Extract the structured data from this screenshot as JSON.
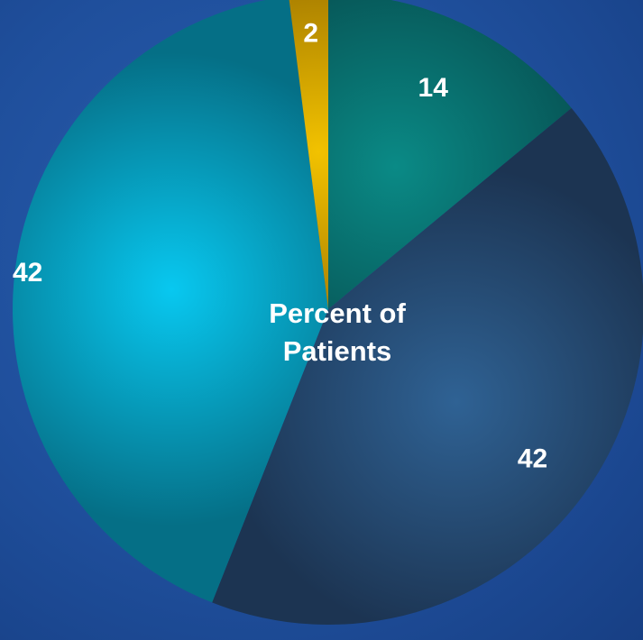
{
  "chart_data": {
    "type": "pie",
    "title": "Percent of Patients",
    "slices": [
      {
        "value": 14,
        "label": "14",
        "color": "#0a8a86",
        "dark": "#064a4c"
      },
      {
        "value": 42,
        "label": "42",
        "color": "#2f6294",
        "dark": "#1c3452"
      },
      {
        "value": 42,
        "label": "42",
        "color": "#08c8f0",
        "dark": "#056f86"
      },
      {
        "value": 2,
        "label": "2",
        "color": "#f2c200",
        "dark": "#8a6200"
      }
    ]
  }
}
